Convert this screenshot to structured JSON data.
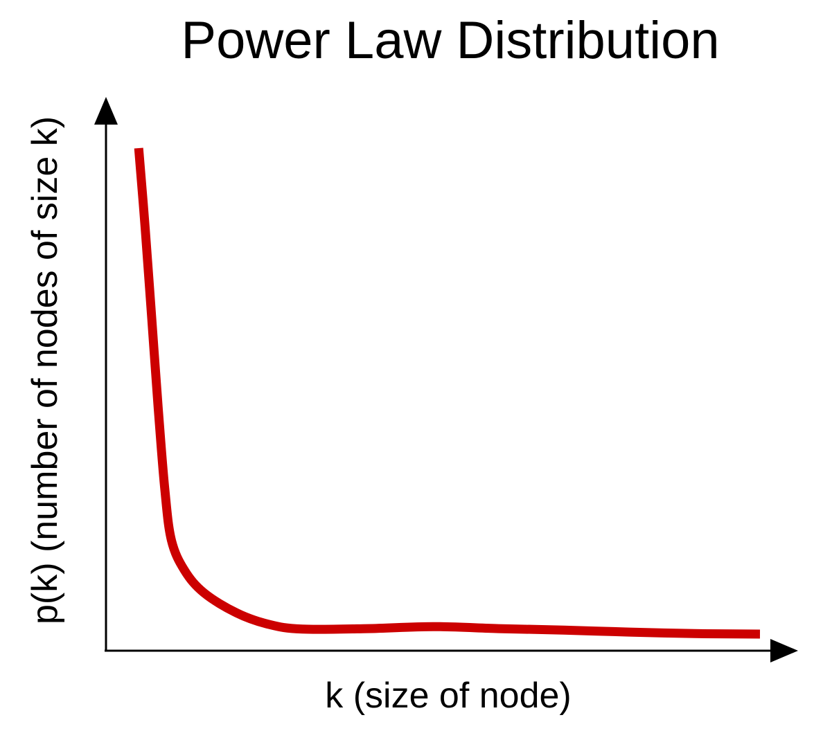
{
  "chart_data": {
    "type": "line",
    "title": "Power Law Distribution",
    "xlabel": "k (size of node)",
    "ylabel": "p(k) (number of nodes of size k)",
    "grid": false,
    "legend": "none",
    "xlim": [
      0,
      100
    ],
    "ylim": [
      0,
      100
    ],
    "series": [
      {
        "color": "#cc0000",
        "x": [
          5,
          6,
          7,
          8,
          9,
          10,
          12,
          15,
          20,
          25,
          30,
          40,
          50,
          60,
          70,
          80,
          90,
          100
        ],
        "y": [
          100,
          84,
          66,
          48,
          32,
          22,
          16,
          11.5,
          7.5,
          5.2,
          4.3,
          4.4,
          4.8,
          4.4,
          4.1,
          3.7,
          3.4,
          3.3
        ]
      }
    ]
  }
}
